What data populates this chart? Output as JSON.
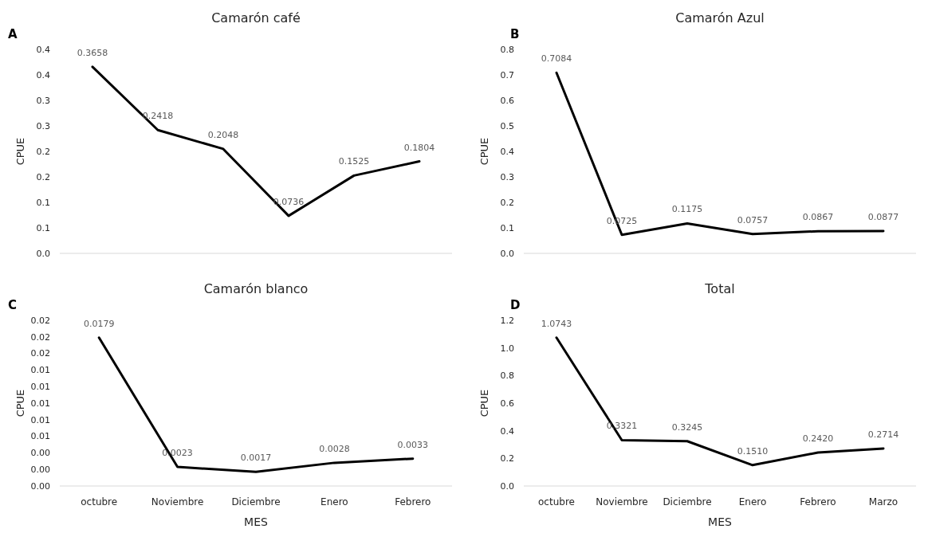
{
  "chart_data": [
    {
      "type": "line",
      "title": "Camarón café",
      "ylabel": "CPUE",
      "annotations": [
        "A"
      ],
      "categories": [
        null,
        null,
        null,
        null,
        null,
        null
      ],
      "series": [
        {
          "color": "#000000",
          "values": [
            0.3658,
            0.2418,
            0.2048,
            0.0736,
            0.1525,
            0.1804
          ],
          "value_labels": [
            "0.3658",
            "0.2418",
            "0.2048",
            "0.0736",
            "0.1525",
            "0.1804"
          ]
        }
      ],
      "ylim": [
        0,
        0.4
      ],
      "yticks": [
        {
          "value": 0,
          "label": "0.0"
        },
        {
          "value": 0.05,
          "label": "0.1"
        },
        {
          "value": 0.1,
          "label": "0.1"
        },
        {
          "value": 0.15,
          "label": "0.2"
        },
        {
          "value": 0.2,
          "label": "0.2"
        },
        {
          "value": 0.25,
          "label": "0.3"
        },
        {
          "value": 0.3,
          "label": "0.3"
        },
        {
          "value": 0.35,
          "label": "0.4"
        },
        {
          "value": 0.4,
          "label": "0.4"
        }
      ],
      "grid": false,
      "marker": "none",
      "line_style": "solid"
    },
    {
      "type": "line",
      "title": "Camarón Azul",
      "ylabel": "CPUE",
      "annotations": [
        "B"
      ],
      "categories": [
        null,
        null,
        null,
        null,
        null,
        null
      ],
      "series": [
        {
          "color": "#000000",
          "values": [
            0.7084,
            0.0725,
            0.1175,
            0.0757,
            0.0867,
            0.0877
          ],
          "value_labels": [
            "0.7084",
            "0.0725",
            "0.1175",
            "0.0757",
            "0.0867",
            "0.0877"
          ]
        }
      ],
      "ylim": [
        0,
        0.8
      ],
      "yticks": [
        {
          "value": 0,
          "label": "0.0"
        },
        0.1,
        0.2,
        0.3,
        0.4,
        0.5,
        0.6,
        0.7,
        0.8
      ],
      "grid": false,
      "marker": "none",
      "line_style": "solid"
    },
    {
      "type": "line",
      "title": "Camarón blanco",
      "xlabel": "MES",
      "ylabel": "CPUE",
      "annotations": [
        "C"
      ],
      "categories": [
        "octubre",
        "Noviembre",
        "Diciembre",
        "Enero",
        "Febrero"
      ],
      "series": [
        {
          "color": "#000000",
          "values": [
            0.0179,
            0.0023,
            0.0017,
            0.0028,
            0.0033
          ],
          "value_labels": [
            "0.0179",
            "0.0023",
            "0.0017",
            "0.0028",
            "0.0033"
          ]
        }
      ],
      "ylim": [
        0,
        0.02
      ],
      "yticks": [
        {
          "value": 0,
          "label": "0.00"
        },
        {
          "value": 0.002,
          "label": "0.00"
        },
        {
          "value": 0.004,
          "label": "0.00"
        },
        {
          "value": 0.006,
          "label": "0.01"
        },
        {
          "value": 0.008,
          "label": "0.01"
        },
        {
          "value": 0.01,
          "label": "0.01"
        },
        {
          "value": 0.012,
          "label": "0.01"
        },
        {
          "value": 0.014,
          "label": "0.01"
        },
        {
          "value": 0.016,
          "label": "0.02"
        },
        {
          "value": 0.018,
          "label": "0.02"
        },
        {
          "value": 0.02,
          "label": "0.02"
        }
      ],
      "grid": false,
      "marker": "none",
      "line_style": "solid"
    },
    {
      "type": "line",
      "title": "Total",
      "xlabel": "MES",
      "ylabel": "CPUE",
      "annotations": [
        "D"
      ],
      "categories": [
        "octubre",
        "Noviembre",
        "Diciembre",
        "Enero",
        "Febrero",
        "Marzo"
      ],
      "series": [
        {
          "color": "#000000",
          "values": [
            1.0743,
            0.3321,
            0.3245,
            0.151,
            0.242,
            0.2714
          ],
          "value_labels": [
            "1.0743",
            "0.3321",
            "0.3245",
            "0.1510",
            "0.2420",
            "0.2714"
          ]
        }
      ],
      "ylim": [
        0,
        1.2
      ],
      "yticks": [
        {
          "value": 0,
          "label": "0.0"
        },
        {
          "value": 0.2,
          "label": "0.2"
        },
        {
          "value": 0.4,
          "label": "0.4"
        },
        {
          "value": 0.6,
          "label": "0.6"
        },
        {
          "value": 0.8,
          "label": "0.8"
        },
        {
          "value": 1,
          "label": "1.0"
        },
        {
          "value": 1.2,
          "label": "1.2"
        }
      ],
      "grid": false,
      "marker": "none",
      "line_style": "solid"
    }
  ]
}
